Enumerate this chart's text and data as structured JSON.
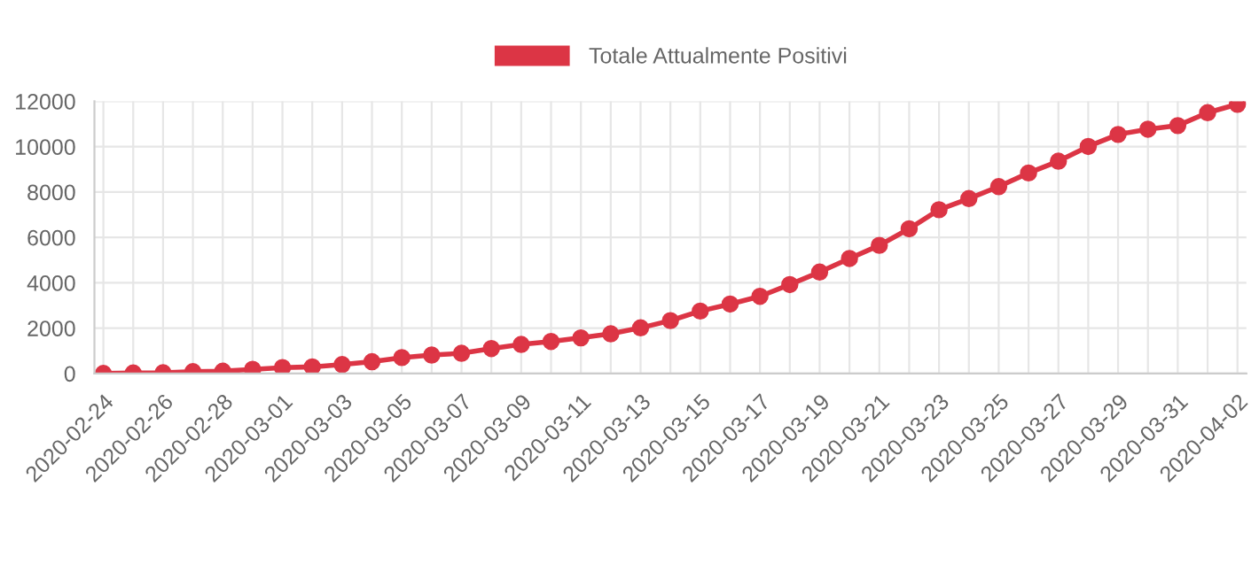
{
  "chart_data": {
    "type": "line",
    "categories": [
      "2020-02-24",
      null,
      "2020-02-26",
      null,
      "2020-02-28",
      null,
      "2020-03-01",
      null,
      "2020-03-03",
      null,
      "2020-03-05",
      null,
      "2020-03-07",
      null,
      "2020-03-09",
      null,
      "2020-03-11",
      null,
      "2020-03-13",
      null,
      "2020-03-15",
      null,
      "2020-03-17",
      null,
      "2020-03-19",
      null,
      "2020-03-21",
      null,
      "2020-03-23",
      null,
      "2020-03-25",
      null,
      "2020-03-27",
      null,
      "2020-03-29",
      null,
      "2020-03-31",
      null,
      "2020-04-02"
    ],
    "series": [
      {
        "name": "Totale Attualmente Positivi",
        "color": "#dc3545",
        "values": [
          0,
          20,
          30,
          80,
          100,
          180,
          260,
          290,
          390,
          520,
          700,
          810,
          890,
          1100,
          1280,
          1410,
          1570,
          1750,
          2010,
          2330,
          2750,
          3060,
          3400,
          3920,
          4470,
          5070,
          5650,
          6380,
          7220,
          7710,
          8240,
          8840,
          9360,
          10010,
          10540,
          10770,
          10930,
          11500,
          11870
        ]
      }
    ],
    "ylim": [
      0,
      12000
    ],
    "yticks": [
      0,
      2000,
      4000,
      6000,
      8000,
      10000,
      12000
    ],
    "grid": true,
    "legend": "top",
    "marker": "circle",
    "line_style": "solid"
  }
}
